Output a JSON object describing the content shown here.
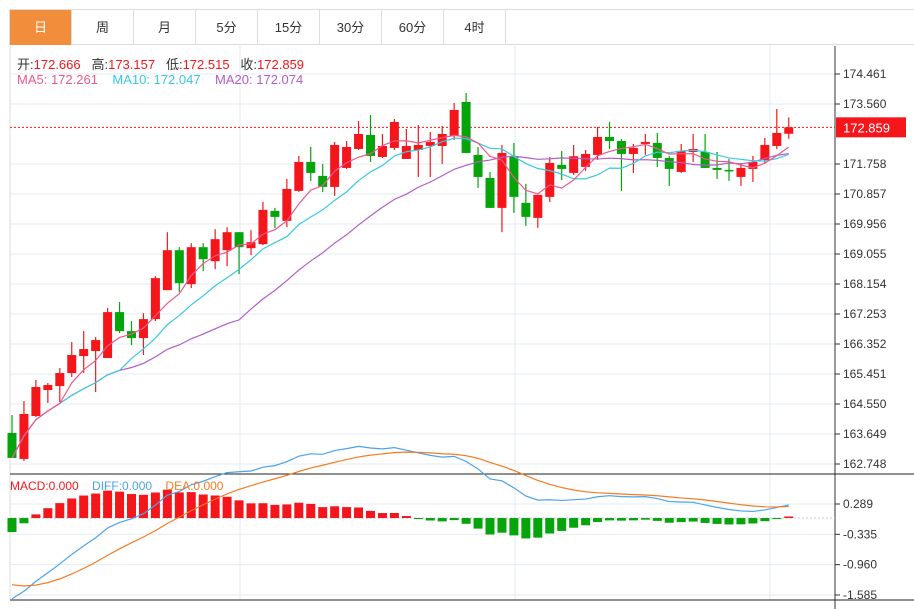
{
  "tabs": [
    "日",
    "周",
    "月",
    "5分",
    "15分",
    "30分",
    "60分",
    "4时"
  ],
  "active_tab": 0,
  "ohlc_info": {
    "open_label": "开:",
    "open": "172.666",
    "high_label": "高:",
    "high": "173.157",
    "low_label": "低:",
    "low": "172.515",
    "close_label": "收:",
    "close": "172.859"
  },
  "ma_info": {
    "ma5": "MA5: 172.261",
    "ma10": "MA10: 172.047",
    "ma20": "MA20: 172.074"
  },
  "macd_info": {
    "macd": "MACD:0.000",
    "diff": "DIFF:0.000",
    "dea": "DEA:0.000"
  },
  "colors": {
    "accent": "#f28d3c",
    "up": "#f5161b",
    "down": "#05a40a",
    "ma5": "#f0578c",
    "ma10": "#38c9e0",
    "ma20": "#b25cc9",
    "diff": "#4aa3ef",
    "dea": "#f57b22"
  },
  "price_axis": [
    "174.461",
    "173.560",
    "172.859",
    "171.758",
    "170.857",
    "169.956",
    "169.055",
    "168.154",
    "167.253",
    "166.352",
    "165.451",
    "164.550",
    "163.649",
    "162.748"
  ],
  "last_price": "172.859",
  "macd_axis": [
    "0.289",
    "-0.335",
    "-0.960",
    "-1.585"
  ],
  "chart_data": {
    "type": "candlestick",
    "price_range": [
      162.748,
      174.461
    ],
    "macd_range": [
      -1.585,
      0.289
    ],
    "candles": [
      [
        163.68,
        162.93,
        164.22,
        162.93
      ],
      [
        162.9,
        164.25,
        164.64,
        162.84
      ],
      [
        164.19,
        165.06,
        165.27,
        164.16
      ],
      [
        164.97,
        165.12,
        165.18,
        164.58
      ],
      [
        165.09,
        165.48,
        165.63,
        164.61
      ],
      [
        165.48,
        166.02,
        166.41,
        165.36
      ],
      [
        165.99,
        166.2,
        166.74,
        165.48
      ],
      [
        166.14,
        166.47,
        166.56,
        164.91
      ],
      [
        165.93,
        167.31,
        167.43,
        165.93
      ],
      [
        167.31,
        166.74,
        167.61,
        166.68
      ],
      [
        166.74,
        166.53,
        167.04,
        166.32
      ],
      [
        166.53,
        167.1,
        167.28,
        166.02
      ],
      [
        167.1,
        168.33,
        168.39,
        167.04
      ],
      [
        167.97,
        169.17,
        169.71,
        167.97
      ],
      [
        169.17,
        168.18,
        169.26,
        167.91
      ],
      [
        168.15,
        169.26,
        169.38,
        168.03
      ],
      [
        169.26,
        168.9,
        169.38,
        168.54
      ],
      [
        168.84,
        169.5,
        169.8,
        168.6
      ],
      [
        169.17,
        169.71,
        169.86,
        168.69
      ],
      [
        169.71,
        169.26,
        169.71,
        168.45
      ],
      [
        169.23,
        169.41,
        169.77,
        169.02
      ],
      [
        169.35,
        170.38,
        170.62,
        169.32
      ],
      [
        170.35,
        170.17,
        170.44,
        169.84
      ],
      [
        170.05,
        171.01,
        171.31,
        169.86
      ],
      [
        170.95,
        171.82,
        172.0,
        170.92
      ],
      [
        171.82,
        171.49,
        172.27,
        171.25
      ],
      [
        171.4,
        171.07,
        171.76,
        170.92
      ],
      [
        171.07,
        172.33,
        172.42,
        170.8
      ],
      [
        171.64,
        172.27,
        172.45,
        171.61
      ],
      [
        172.21,
        172.66,
        173.05,
        172.18
      ],
      [
        172.63,
        172.0,
        173.23,
        171.82
      ],
      [
        171.97,
        172.3,
        172.66,
        171.94
      ],
      [
        172.24,
        173.02,
        173.11,
        172.18
      ],
      [
        171.91,
        172.3,
        172.81,
        171.91
      ],
      [
        172.18,
        172.33,
        172.93,
        171.37
      ],
      [
        172.3,
        172.42,
        172.72,
        171.37
      ],
      [
        172.3,
        172.66,
        172.9,
        171.76
      ],
      [
        172.6,
        173.38,
        173.59,
        172.48
      ],
      [
        173.62,
        172.09,
        173.89,
        172.09
      ],
      [
        172.03,
        171.37,
        172.27,
        171.04
      ],
      [
        171.34,
        170.44,
        171.52,
        170.44
      ],
      [
        170.44,
        172.09,
        172.33,
        169.71
      ],
      [
        171.97,
        170.77,
        172.39,
        170.29
      ],
      [
        170.59,
        170.17,
        171.16,
        169.9
      ],
      [
        170.14,
        170.83,
        170.83,
        169.84
      ],
      [
        170.77,
        171.79,
        171.97,
        170.62
      ],
      [
        171.73,
        171.61,
        172.15,
        171.28
      ],
      [
        171.49,
        171.99,
        172.33,
        171.43
      ],
      [
        171.67,
        172.06,
        172.18,
        171.55
      ],
      [
        172.03,
        172.57,
        172.87,
        171.88
      ],
      [
        172.57,
        172.45,
        173.02,
        172.21
      ],
      [
        172.45,
        172.06,
        172.51,
        170.95
      ],
      [
        172.06,
        172.24,
        172.36,
        171.49
      ],
      [
        172.36,
        172.42,
        172.66,
        172.03
      ],
      [
        172.39,
        171.94,
        172.69,
        171.67
      ],
      [
        171.94,
        171.61,
        172.0,
        171.1
      ],
      [
        171.52,
        172.15,
        172.36,
        171.49
      ],
      [
        172.12,
        172.21,
        172.66,
        171.82
      ],
      [
        172.12,
        171.64,
        172.66,
        171.64
      ],
      [
        171.64,
        171.58,
        172.12,
        171.31
      ],
      [
        171.58,
        171.55,
        171.91,
        171.25
      ],
      [
        171.37,
        171.64,
        171.79,
        171.1
      ],
      [
        171.61,
        171.82,
        172.0,
        171.22
      ],
      [
        171.88,
        172.33,
        172.54,
        171.76
      ],
      [
        172.3,
        172.69,
        173.41,
        172.21
      ],
      [
        172.666,
        172.859,
        173.157,
        172.515
      ]
    ]
  }
}
